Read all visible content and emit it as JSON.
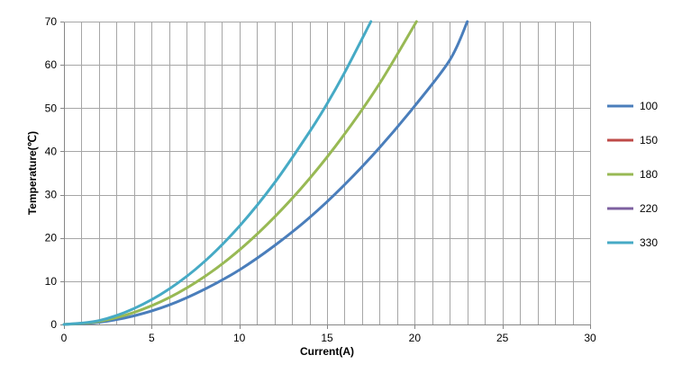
{
  "chart_data": {
    "type": "line",
    "title": "",
    "xlabel": "Current(A)",
    "ylabel": "Temperature(℃)",
    "xlim": [
      0,
      30
    ],
    "ylim": [
      0,
      70
    ],
    "xticks": [
      0,
      5,
      10,
      15,
      20,
      25,
      30
    ],
    "yticks": [
      0,
      10,
      20,
      30,
      40,
      50,
      60,
      70
    ],
    "x_minor_step": 1,
    "grid": true,
    "legend_position": "right",
    "colors": {
      "grid": "#a6a6a6",
      "axis": "#868686"
    },
    "series": [
      {
        "name": "100",
        "color": "#4a7ebb",
        "x": [
          0,
          2,
          4,
          6,
          8,
          10,
          12,
          14,
          16,
          18,
          20,
          22,
          23
        ],
        "y": [
          0,
          0.5,
          2.0,
          4.5,
          8.1,
          12.6,
          18.2,
          24.7,
          32.3,
          40.9,
          50.5,
          61.1,
          70
        ]
      },
      {
        "name": "150",
        "color": "#be4b48",
        "x": [],
        "y": []
      },
      {
        "name": "180",
        "color": "#98b954",
        "x": [
          0,
          2,
          4,
          6,
          8,
          10,
          12,
          14,
          16,
          18,
          20.1
        ],
        "y": [
          0,
          0.7,
          2.8,
          6.2,
          11.0,
          17.2,
          24.8,
          33.7,
          44.0,
          55.7,
          70
        ]
      },
      {
        "name": "220",
        "color": "#7d60a0",
        "x": [],
        "y": []
      },
      {
        "name": "330",
        "color": "#46aac5",
        "x": [
          0,
          2,
          4,
          6,
          8,
          10,
          12,
          14,
          15,
          16,
          17.5
        ],
        "y": [
          0,
          0.9,
          3.7,
          8.2,
          14.5,
          22.7,
          32.7,
          44.5,
          51.0,
          58.2,
          70
        ]
      }
    ]
  }
}
